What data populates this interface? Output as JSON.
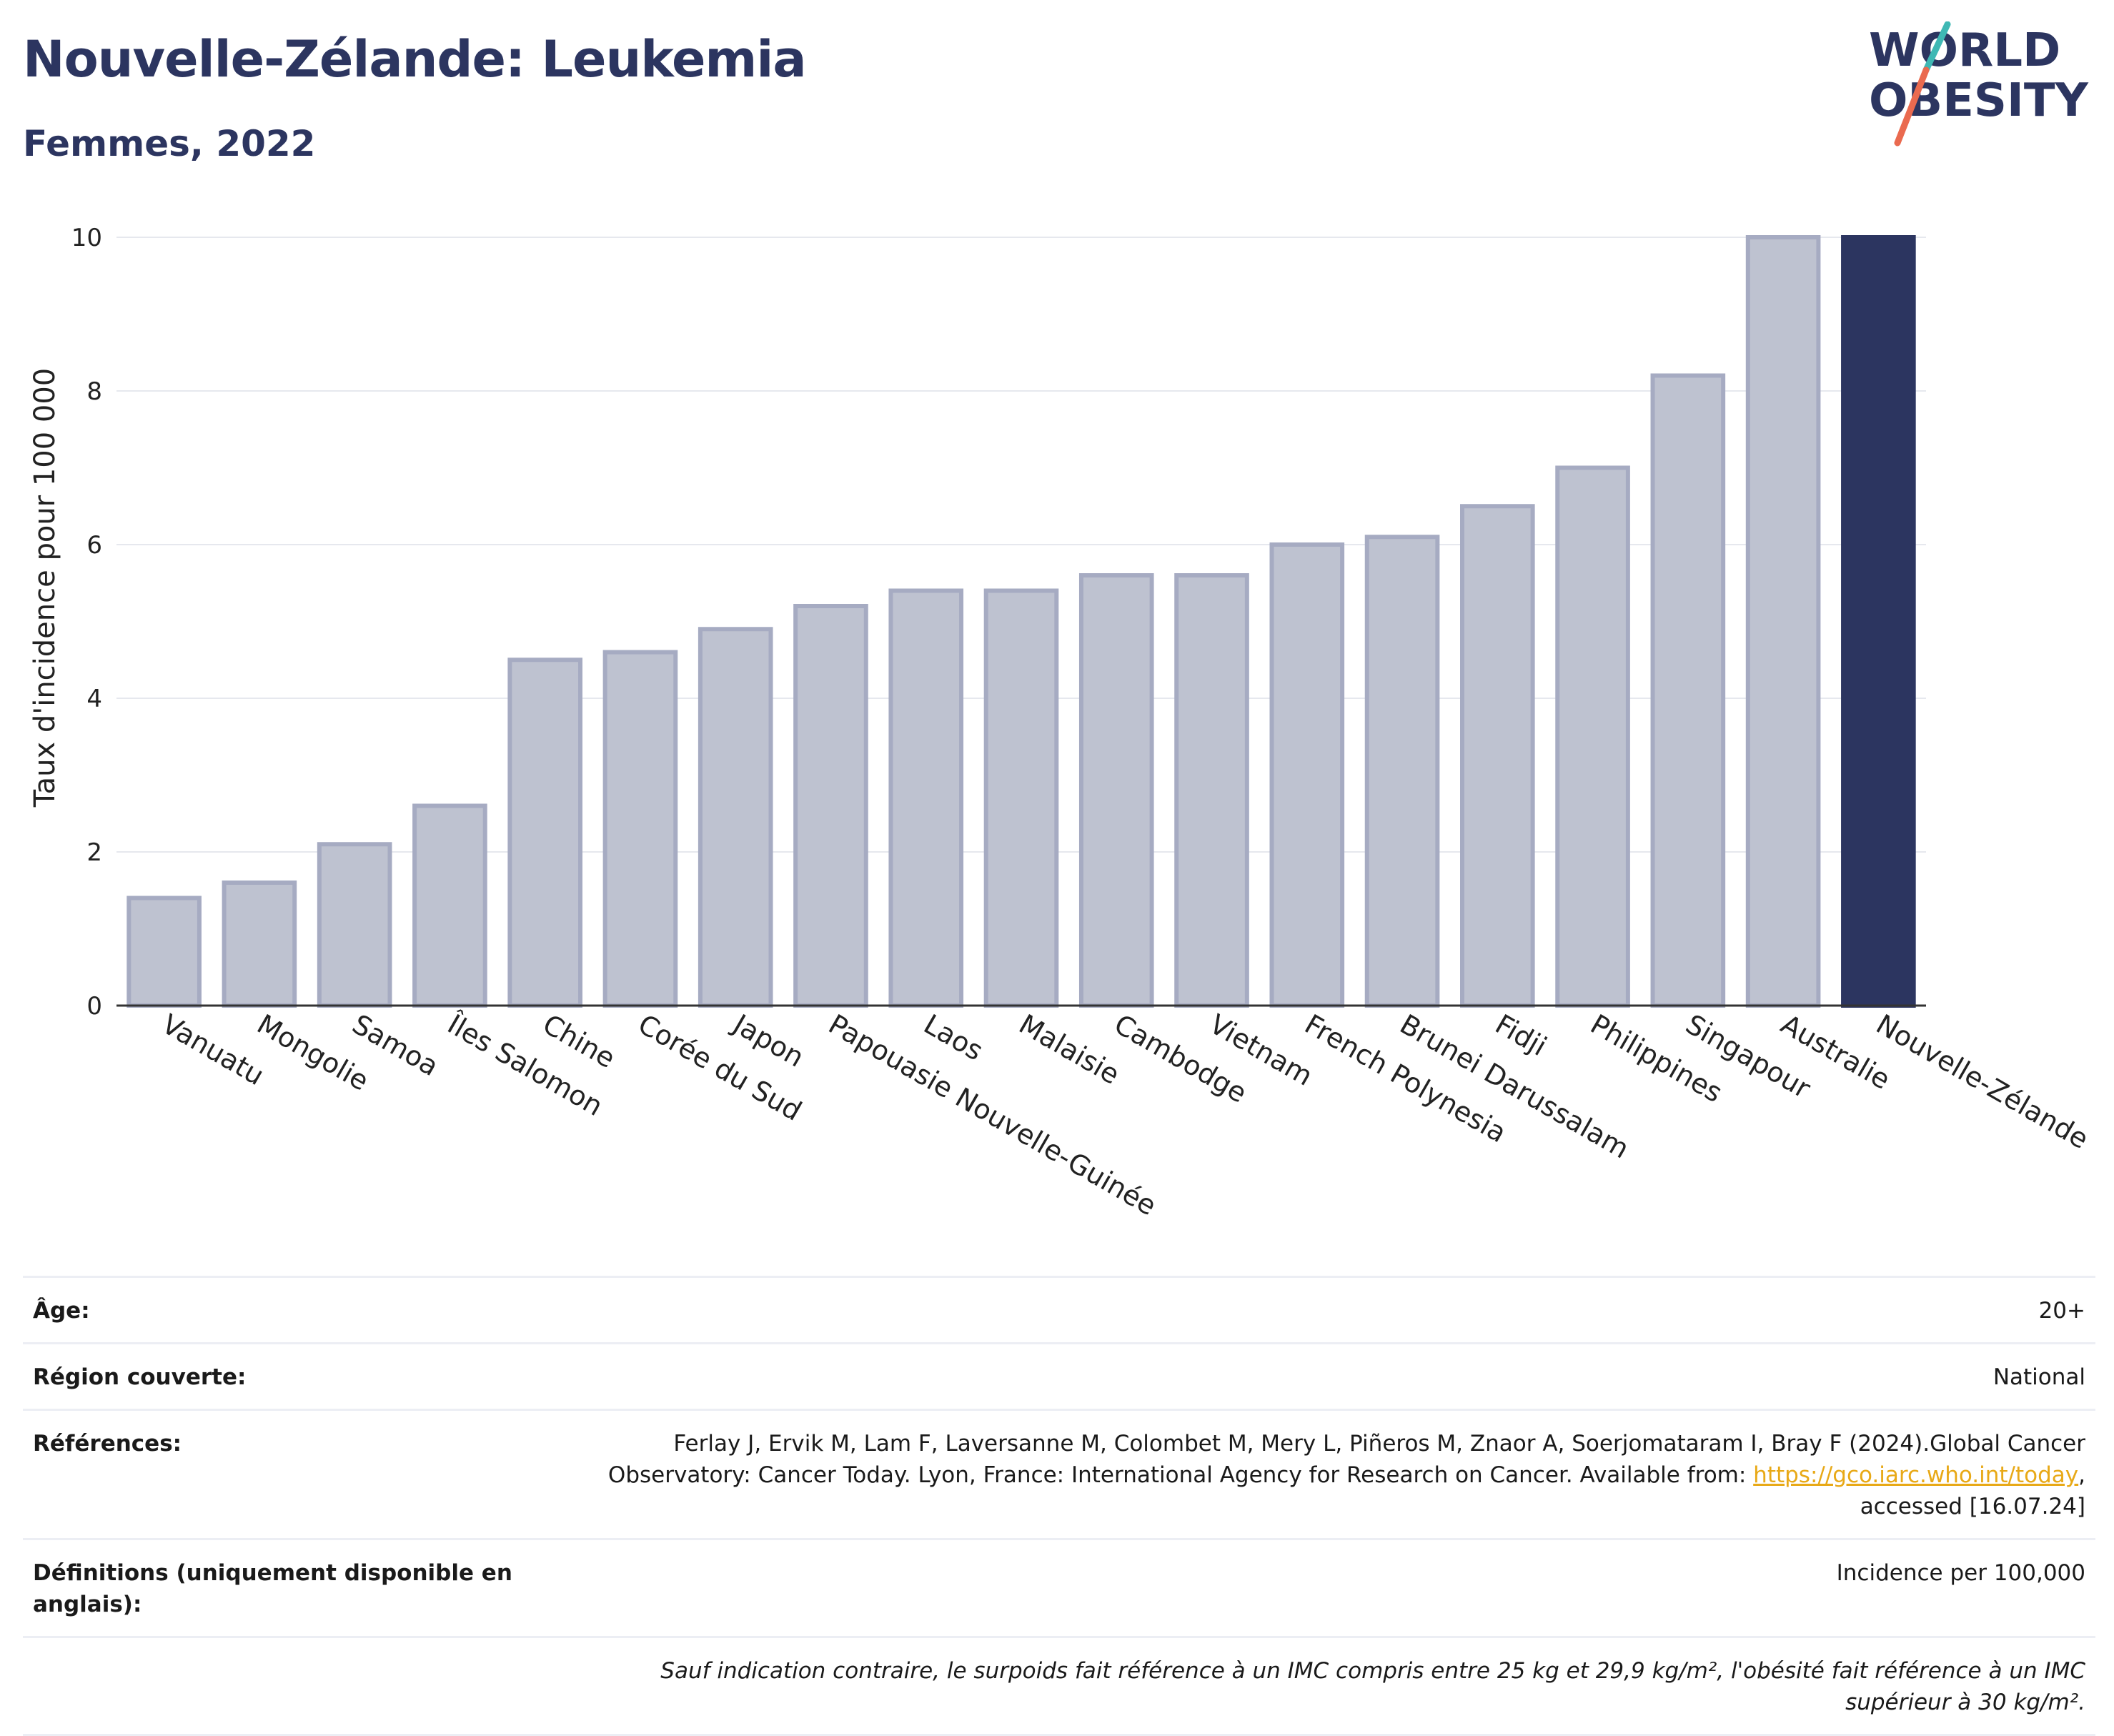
{
  "header": {
    "title": "Nouvelle-Zélande: Leukemia",
    "subtitle": "Femmes, 2022"
  },
  "logo": {
    "line1": "WORLD",
    "line2": "OBESITY"
  },
  "colors": {
    "bar_default": "#bec2d0",
    "bar_default_stroke": "#a6abc2",
    "bar_highlight": "#2c3560",
    "title": "#2c3560",
    "link": "#e8a917"
  },
  "chart_data": {
    "type": "bar",
    "title": "Nouvelle-Zélande: Leukemia",
    "subtitle": "Femmes, 2022",
    "xlabel": "",
    "ylabel": "Taux d'incidence pour 100 000",
    "ylim": [
      0,
      10
    ],
    "yticks": [
      0,
      2,
      4,
      6,
      8,
      10
    ],
    "grid": true,
    "highlight": "Nouvelle-Zélande",
    "categories": [
      "Vanuatu",
      "Mongolie",
      "Samoa",
      "Îles Salomon",
      "Chine",
      "Corée du Sud",
      "Japon",
      "Papouasie Nouvelle-Guinée",
      "Laos",
      "Malaisie",
      "Cambodge",
      "Vietnam",
      "French Polynesia",
      "Brunei Darussalam",
      "Fidji",
      "Philippines",
      "Singapour",
      "Australie",
      "Nouvelle-Zélande"
    ],
    "values": [
      1.4,
      1.6,
      2.1,
      2.6,
      4.5,
      4.6,
      4.9,
      5.2,
      5.4,
      5.4,
      5.6,
      5.6,
      6.0,
      6.1,
      6.5,
      7.0,
      8.2,
      10.0,
      10.0
    ]
  },
  "meta": {
    "age_label": "Âge:",
    "age_value": "20+",
    "region_label": "Région couverte:",
    "region_value": "National",
    "refs_label": "Références:",
    "refs_text_1": "Ferlay J, Ervik M, Lam F, Laversanne M, Colombet M, Mery L, Piñeros M, Znaor A, Soerjomataram I, Bray F (2024).Global Cancer Observatory: Cancer Today. Lyon, France: International Agency for Research on Cancer. Available from: ",
    "refs_link": "https://gco.iarc.who.int/today",
    "refs_text_2": ", accessed [16.07.24]",
    "defs_label": "Définitions (uniquement disponible en anglais):",
    "defs_value": "Incidence per 100,000",
    "note": "Sauf indication contraire, le surpoids fait référence à un IMC compris entre 25 kg et 29,9 kg/m², l'obésité fait référence à un IMC supérieur à 30 kg/m²."
  }
}
